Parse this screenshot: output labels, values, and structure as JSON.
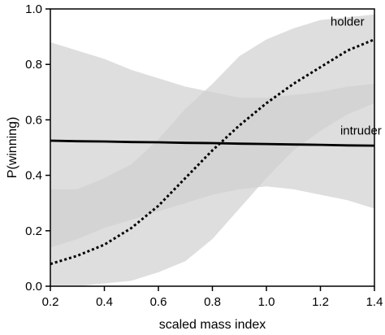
{
  "chart_data": {
    "type": "line",
    "title": "",
    "xlabel": "scaled mass index",
    "ylabel": "P(winning)",
    "xlim": [
      0.2,
      1.4
    ],
    "ylim": [
      0.0,
      1.0
    ],
    "xticks": [
      0.2,
      0.4,
      0.6,
      0.8,
      1.0,
      1.2,
      1.4
    ],
    "xtick_labels": [
      "0.2",
      "0.4",
      "0.6",
      "0.8",
      "1.0",
      "1.2",
      "1.4"
    ],
    "yticks": [
      0.0,
      0.2,
      0.4,
      0.6,
      0.8,
      1.0
    ],
    "ytick_labels": [
      "0.0",
      "0.2",
      "0.4",
      "0.6",
      "0.8",
      "1.0"
    ],
    "grid": false,
    "legend": "none",
    "series": [
      {
        "name": "holder",
        "style": "dotted",
        "color": "#000000",
        "band_color": "#d0d0d0",
        "x": [
          0.2,
          0.3,
          0.4,
          0.5,
          0.6,
          0.7,
          0.8,
          0.9,
          1.0,
          1.1,
          1.2,
          1.3,
          1.4
        ],
        "y": [
          0.08,
          0.11,
          0.15,
          0.21,
          0.29,
          0.39,
          0.49,
          0.58,
          0.66,
          0.73,
          0.79,
          0.85,
          0.89
        ],
        "lower": [
          0.0,
          0.0,
          0.01,
          0.02,
          0.05,
          0.09,
          0.17,
          0.28,
          0.39,
          0.49,
          0.56,
          0.62,
          0.66
        ],
        "upper": [
          0.35,
          0.35,
          0.39,
          0.44,
          0.53,
          0.64,
          0.73,
          0.83,
          0.89,
          0.93,
          0.96,
          0.97,
          0.98
        ]
      },
      {
        "name": "intruder",
        "style": "solid",
        "color": "#000000",
        "band_color": "#d0d0d0",
        "x": [
          0.2,
          0.3,
          0.4,
          0.5,
          0.6,
          0.7,
          0.8,
          0.9,
          1.0,
          1.1,
          1.2,
          1.3,
          1.4
        ],
        "y": [
          0.525,
          0.523,
          0.522,
          0.52,
          0.519,
          0.517,
          0.516,
          0.514,
          0.513,
          0.511,
          0.51,
          0.508,
          0.507
        ],
        "lower": [
          0.14,
          0.17,
          0.21,
          0.24,
          0.27,
          0.3,
          0.33,
          0.35,
          0.36,
          0.35,
          0.33,
          0.31,
          0.28
        ],
        "upper": [
          0.88,
          0.85,
          0.82,
          0.78,
          0.75,
          0.72,
          0.7,
          0.68,
          0.68,
          0.69,
          0.7,
          0.72,
          0.73
        ]
      }
    ]
  }
}
